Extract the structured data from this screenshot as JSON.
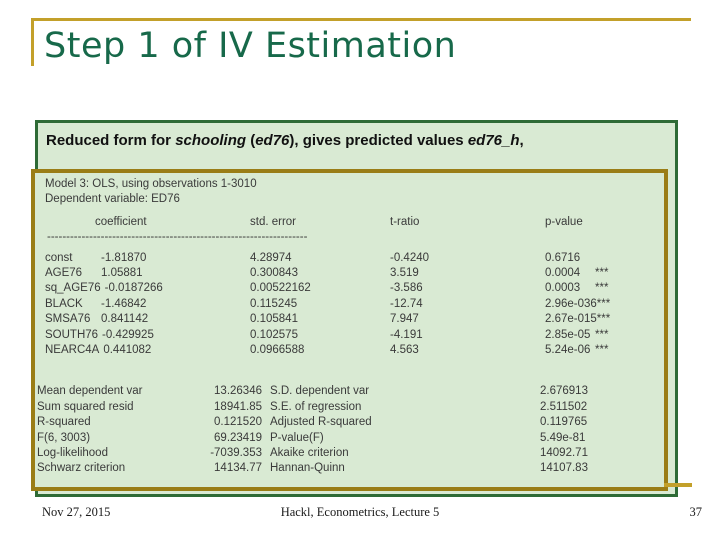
{
  "slide": {
    "title": "Step 1 of IV Estimation",
    "footer": {
      "date": "Nov 27, 2015",
      "center": "Hackl,  Econometrics, Lecture 5",
      "page_number": "37"
    }
  },
  "headline": {
    "part1": "Reduced form for ",
    "em1": "schooling",
    "part2": " (",
    "em2": "ed76",
    "part3": "), gives predicted values ",
    "em3": "ed76_h",
    "part4": ","
  },
  "model": {
    "line1": "Model 3: OLS, using observations 1-3010",
    "line2": "Dependent variable: ED76",
    "headers": {
      "coefficient": "coefficient",
      "std_error": "std. error",
      "t_ratio": "t-ratio",
      "p_value": "p-value"
    },
    "separator": "--------------------------------------------------------------------",
    "rows": [
      {
        "name": "const",
        "coef": "-1.81870",
        "se": "4.28974",
        "t": "-0.4240",
        "p": "0.6716",
        "stars": ""
      },
      {
        "name": "AGE76",
        "coef": "1.05881",
        "se": "0.300843",
        "t": "3.519",
        "p": "0.0004",
        "stars": "***"
      },
      {
        "name": "sq_AGE76",
        "coef": "-0.0187266",
        "se": "0.00522162",
        "t": "-3.586",
        "p": "0.0003",
        "stars": "***"
      },
      {
        "name": "BLACK",
        "coef": "-1.46842",
        "se": "0.115245",
        "t": "-12.74",
        "p": "2.96e-036",
        "stars": "***"
      },
      {
        "name": "SMSA76",
        "coef": "0.841142",
        "se": "0.105841",
        "t": "7.947",
        "p": "2.67e-015",
        "stars": "***"
      },
      {
        "name": "SOUTH76",
        "coef": "-0.429925",
        "se": "0.102575",
        "t": "-4.191",
        "p": "2.85e-05",
        "stars": "***"
      },
      {
        "name": "NEARC4A",
        "coef": "0.441082",
        "se": "0.0966588",
        "t": "4.563",
        "p": "5.24e-06",
        "stars": "***"
      }
    ],
    "stats": [
      {
        "label1": "Mean dependent var",
        "value1": "13.26346",
        "label2": "S.D. dependent var",
        "value2": "2.676913"
      },
      {
        "label1": "Sum squared resid",
        "value1": "18941.85",
        "label2": "S.E. of regression",
        "value2": "2.511502"
      },
      {
        "label1": "R-squared",
        "value1": "0.121520",
        "label2": "Adjusted R-squared",
        "value2": "0.119765"
      },
      {
        "label1": "F(6, 3003)",
        "value1": "69.23419",
        "label2": "P-value(F)",
        "value2": "5.49e-81"
      },
      {
        "label1": "Log-likelihood",
        "value1": "-7039.353",
        "label2": "Akaike criterion",
        "value2": "14092.71"
      },
      {
        "label1": "Schwarz criterion",
        "value1": "14134.77",
        "label2": "Hannan-Quinn",
        "value2": "14107.83"
      }
    ]
  },
  "colors": {
    "accent_gold": "#C3A02A",
    "border_olive": "#9A7D16",
    "border_green": "#2E6B36",
    "box_background": "#D9EAD3",
    "title_green": "#17694A"
  }
}
